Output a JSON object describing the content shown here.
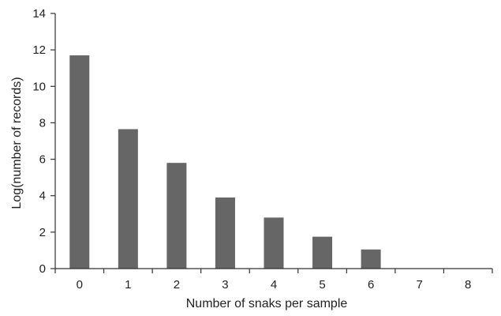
{
  "chart_data": {
    "type": "bar",
    "title": "",
    "xlabel": "Number of snaks per sample",
    "ylabel": "Log(number of records)",
    "categories": [
      "0",
      "1",
      "2",
      "3",
      "4",
      "5",
      "6",
      "7",
      "8"
    ],
    "values": [
      11.7,
      7.65,
      5.8,
      3.9,
      2.8,
      1.75,
      1.05,
      0,
      0
    ],
    "ylim": [
      0,
      14
    ],
    "yticks": [
      "0",
      "2",
      "4",
      "6",
      "8",
      "10",
      "12",
      "14"
    ],
    "grid": false,
    "bar_color": "#666666",
    "axis_color": "#333333"
  }
}
